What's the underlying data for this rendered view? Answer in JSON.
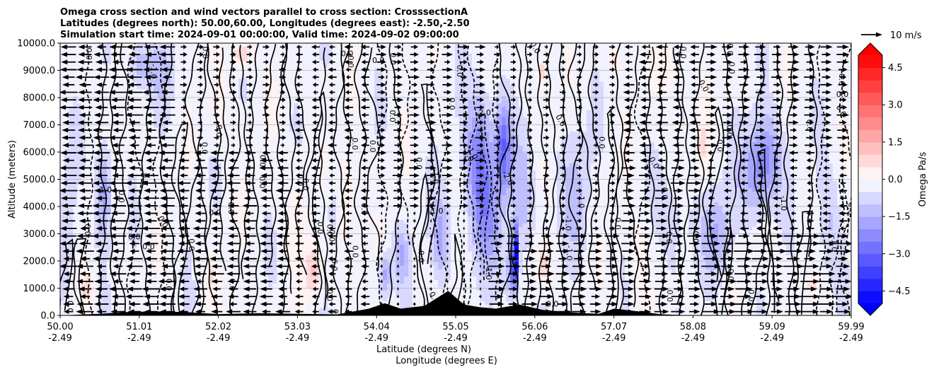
{
  "chart_data": {
    "type": "contour",
    "title_lines": [
      "Omega cross section and wind vectors parallel to cross section: CrosssectionA",
      "Latitudes (degrees north): 50.00,60.00, Longitudes (degrees east): -2.50,-2.50",
      "Simulation start time: 2024-09-01 00:00:00, Valid time: 2024-09-02 09:00:00"
    ],
    "ylabel": "Altitude (meters)",
    "xlabel_lat": "Latitude (degrees N)",
    "xlabel_lon": "Longitude (degrees E)",
    "ylim": [
      0,
      10000
    ],
    "y_ticks": [
      "0.0",
      "1000.0",
      "2000.0",
      "3000.0",
      "4000.0",
      "5000.0",
      "6000.0",
      "7000.0",
      "8000.0",
      "9000.0",
      "10000.0"
    ],
    "y_tick_values": [
      0,
      1000,
      2000,
      3000,
      4000,
      5000,
      6000,
      7000,
      8000,
      9000,
      10000
    ],
    "x_ticks_lat": [
      "50.00",
      "51.01",
      "52.02",
      "53.03",
      "54.04",
      "55.05",
      "56.06",
      "57.07",
      "58.08",
      "59.09",
      "59.99"
    ],
    "x_ticks_lon": [
      "-2.49",
      "-2.49",
      "-2.49",
      "-2.49",
      "-2.49",
      "-2.49",
      "-2.49",
      "-2.49",
      "-2.49",
      "-2.49",
      "-2.49"
    ],
    "xlim_lat": [
      50.0,
      59.99
    ],
    "colorbar": {
      "label": "Omega Pa/s",
      "ticks": [
        "4.5",
        "3.0",
        "1.5",
        "0.0",
        "−1.5",
        "−3.0",
        "−4.5"
      ],
      "tick_values": [
        4.5,
        3.0,
        1.5,
        0.0,
        -1.5,
        -3.0,
        -4.5
      ],
      "range": [
        -5.0,
        5.0
      ],
      "levels": 20
    },
    "quiver_key": {
      "label": "10 m/s",
      "speed": 10
    },
    "contour_labels": [
      "0.0",
      "-1.0",
      "-2.0",
      "-3.0",
      "1.0"
    ],
    "omega_features": [
      {
        "lat": 50.1,
        "z": 3000,
        "value": -0.6,
        "wlat": 0.1,
        "wz": 3000
      },
      {
        "lat": 50.55,
        "z": 4500,
        "value": -1.8,
        "wlat": 0.1,
        "wz": 1800
      },
      {
        "lat": 51.0,
        "z": 9200,
        "value": -1.2,
        "wlat": 0.15,
        "wz": 900
      },
      {
        "lat": 51.3,
        "z": 9000,
        "value": -0.9,
        "wlat": 0.15,
        "wz": 1200
      },
      {
        "lat": 52.3,
        "z": 9600,
        "value": 1.6,
        "wlat": 0.12,
        "wz": 500
      },
      {
        "lat": 52.0,
        "z": 7500,
        "value": 0.6,
        "wlat": 0.12,
        "wz": 1200
      },
      {
        "lat": 50.35,
        "z": 1000,
        "value": 0.8,
        "wlat": 0.08,
        "wz": 700
      },
      {
        "lat": 51.9,
        "z": 1500,
        "value": 0.6,
        "wlat": 0.1,
        "wz": 900
      },
      {
        "lat": 53.0,
        "z": 3500,
        "value": 0.6,
        "wlat": 0.12,
        "wz": 2000
      },
      {
        "lat": 53.2,
        "z": 1600,
        "value": 1.4,
        "wlat": 0.1,
        "wz": 900
      },
      {
        "lat": 53.45,
        "z": 4000,
        "value": -0.8,
        "wlat": 0.1,
        "wz": 1500
      },
      {
        "lat": 53.6,
        "z": 4200,
        "value": 0.8,
        "wlat": 0.15,
        "wz": 2000
      },
      {
        "lat": 54.1,
        "z": 1500,
        "value": -1.6,
        "wlat": 0.08,
        "wz": 800
      },
      {
        "lat": 54.3,
        "z": 2200,
        "value": -1.2,
        "wlat": 0.1,
        "wz": 1000
      },
      {
        "lat": 54.8,
        "z": 2800,
        "value": -1.4,
        "wlat": 0.12,
        "wz": 1500
      },
      {
        "lat": 55.3,
        "z": 5800,
        "value": -2.2,
        "wlat": 0.18,
        "wz": 2300
      },
      {
        "lat": 55.6,
        "z": 6200,
        "value": -2.6,
        "wlat": 0.1,
        "wz": 1600
      },
      {
        "lat": 55.4,
        "z": 3500,
        "value": -1.3,
        "wlat": 0.2,
        "wz": 2000
      },
      {
        "lat": 55.75,
        "z": 2200,
        "value": -5.0,
        "wlat": 0.04,
        "wz": 1000
      },
      {
        "lat": 55.7,
        "z": 1500,
        "value": -1.8,
        "wlat": 0.08,
        "wz": 900
      },
      {
        "lat": 55.85,
        "z": 4500,
        "value": -1.0,
        "wlat": 0.15,
        "wz": 2000
      },
      {
        "lat": 56.1,
        "z": 1800,
        "value": 1.2,
        "wlat": 0.1,
        "wz": 800
      },
      {
        "lat": 56.1,
        "z": 9000,
        "value": 1.2,
        "wlat": 0.08,
        "wz": 600
      },
      {
        "lat": 56.5,
        "z": 4500,
        "value": -0.8,
        "wlat": 0.2,
        "wz": 2500
      },
      {
        "lat": 57.0,
        "z": 9400,
        "value": 0.8,
        "wlat": 0.1,
        "wz": 500
      },
      {
        "lat": 57.3,
        "z": 2000,
        "value": 0.7,
        "wlat": 0.1,
        "wz": 1500
      },
      {
        "lat": 57.8,
        "z": 3500,
        "value": -0.6,
        "wlat": 0.2,
        "wz": 2500
      },
      {
        "lat": 58.1,
        "z": 6200,
        "value": 0.8,
        "wlat": 0.08,
        "wz": 1100
      },
      {
        "lat": 58.3,
        "z": 3000,
        "value": -1.2,
        "wlat": 0.2,
        "wz": 1500
      },
      {
        "lat": 58.9,
        "z": 6000,
        "value": -1.5,
        "wlat": 0.2,
        "wz": 1500
      },
      {
        "lat": 58.8,
        "z": 5000,
        "value": -1.2,
        "wlat": 0.25,
        "wz": 1500
      },
      {
        "lat": 59.5,
        "z": 1100,
        "value": 0.8,
        "wlat": 0.08,
        "wz": 400
      },
      {
        "lat": 59.7,
        "z": 3500,
        "value": -0.8,
        "wlat": 0.15,
        "wz": 2000
      },
      {
        "lat": 57.7,
        "z": 9000,
        "value": 0.6,
        "wlat": 0.2,
        "wz": 1000
      }
    ],
    "terrain": [
      {
        "lat": 50.0,
        "z": 0
      },
      {
        "lat": 50.5,
        "z": 60
      },
      {
        "lat": 50.8,
        "z": 120
      },
      {
        "lat": 51.2,
        "z": 150
      },
      {
        "lat": 51.6,
        "z": 120
      },
      {
        "lat": 52.0,
        "z": 50
      },
      {
        "lat": 52.5,
        "z": 80
      },
      {
        "lat": 53.0,
        "z": 60
      },
      {
        "lat": 53.5,
        "z": 40
      },
      {
        "lat": 53.9,
        "z": 250
      },
      {
        "lat": 54.1,
        "z": 450
      },
      {
        "lat": 54.3,
        "z": 250
      },
      {
        "lat": 54.6,
        "z": 350
      },
      {
        "lat": 54.9,
        "z": 900
      },
      {
        "lat": 55.1,
        "z": 400
      },
      {
        "lat": 55.3,
        "z": 300
      },
      {
        "lat": 55.5,
        "z": 250
      },
      {
        "lat": 55.8,
        "z": 400
      },
      {
        "lat": 56.1,
        "z": 200
      },
      {
        "lat": 56.5,
        "z": 100
      },
      {
        "lat": 56.8,
        "z": 60
      },
      {
        "lat": 57.0,
        "z": 250
      },
      {
        "lat": 57.3,
        "z": 150
      },
      {
        "lat": 57.6,
        "z": 40
      },
      {
        "lat": 58.0,
        "z": 0
      },
      {
        "lat": 59.99,
        "z": 0
      }
    ]
  }
}
